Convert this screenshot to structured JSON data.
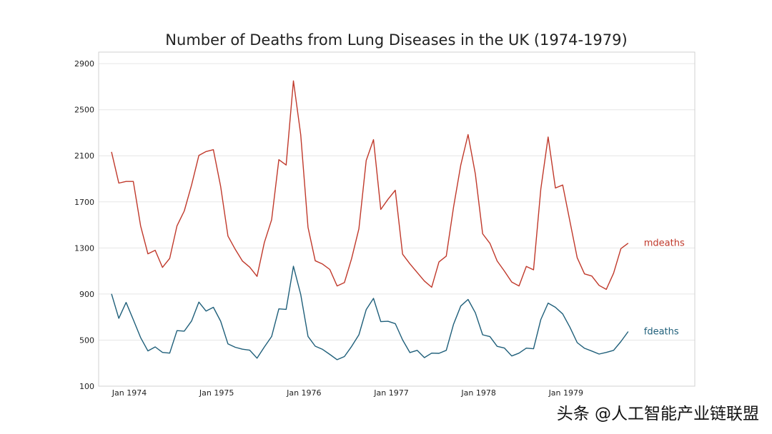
{
  "chart_data": {
    "type": "line",
    "title": "Number of Deaths from Lung Diseases in the UK (1974-1979)",
    "xlabel": "",
    "ylabel": "",
    "ylim": [
      100,
      3000
    ],
    "yticks": [
      100,
      500,
      900,
      1300,
      1700,
      2100,
      2500,
      2900
    ],
    "x_tick_labels": [
      "Jan 1974",
      "Jan 1975",
      "Jan 1976",
      "Jan 1977",
      "Jan 1978",
      "Jan 1979"
    ],
    "x": [
      "1974-01",
      "1974-02",
      "1974-03",
      "1974-04",
      "1974-05",
      "1974-06",
      "1974-07",
      "1974-08",
      "1974-09",
      "1974-10",
      "1974-11",
      "1974-12",
      "1975-01",
      "1975-02",
      "1975-03",
      "1975-04",
      "1975-05",
      "1975-06",
      "1975-07",
      "1975-08",
      "1975-09",
      "1975-10",
      "1975-11",
      "1975-12",
      "1976-01",
      "1976-02",
      "1976-03",
      "1976-04",
      "1976-05",
      "1976-06",
      "1976-07",
      "1976-08",
      "1976-09",
      "1976-10",
      "1976-11",
      "1976-12",
      "1977-01",
      "1977-02",
      "1977-03",
      "1977-04",
      "1977-05",
      "1977-06",
      "1977-07",
      "1977-08",
      "1977-09",
      "1977-10",
      "1977-11",
      "1977-12",
      "1978-01",
      "1978-02",
      "1978-03",
      "1978-04",
      "1978-05",
      "1978-06",
      "1978-07",
      "1978-08",
      "1978-09",
      "1978-10",
      "1978-11",
      "1978-12",
      "1979-01",
      "1979-02",
      "1979-03",
      "1979-04",
      "1979-05",
      "1979-06",
      "1979-07",
      "1979-08",
      "1979-09",
      "1979-10",
      "1979-11",
      "1979-12"
    ],
    "grid": "horizontal",
    "series": [
      {
        "name": "mdeaths",
        "color": "#c0392b",
        "values": [
          2134,
          1863,
          1877,
          1877,
          1492,
          1249,
          1280,
          1131,
          1209,
          1492,
          1621,
          1846,
          2103,
          2137,
          2153,
          1833,
          1403,
          1288,
          1186,
          1133,
          1053,
          1347,
          1545,
          2066,
          2020,
          2750,
          2283,
          1479,
          1189,
          1160,
          1113,
          970,
          999,
          1208,
          1467,
          2059,
          2240,
          1634,
          1722,
          1801,
          1246,
          1162,
          1087,
          1013,
          959,
          1179,
          1229,
          1655,
          2019,
          2284,
          1942,
          1423,
          1340,
          1187,
          1098,
          1004,
          970,
          1140,
          1110,
          1812,
          2263,
          1820,
          1846,
          1531,
          1215,
          1075,
          1056,
          975,
          940,
          1081,
          1294,
          1341
        ]
      },
      {
        "name": "fdeaths",
        "color": "#1f5f7a",
        "values": [
          901,
          689,
          827,
          677,
          522,
          406,
          441,
          393,
          387,
          582,
          578,
          666,
          830,
          752,
          785,
          664,
          467,
          438,
          421,
          412,
          343,
          440,
          531,
          771,
          767,
          1141,
          896,
          532,
          447,
          420,
          376,
          330,
          357,
          445,
          546,
          764,
          862,
          660,
          663,
          643,
          502,
          392,
          411,
          348,
          387,
          385,
          411,
          638,
          796,
          853,
          737,
          546,
          530,
          446,
          431,
          362,
          387,
          430,
          425,
          679,
          821,
          785,
          727,
          612,
          478,
          429,
          405,
          379,
          393,
          411,
          487,
          574
        ]
      }
    ]
  },
  "watermark": "头条 @人工智能产业链联盟"
}
